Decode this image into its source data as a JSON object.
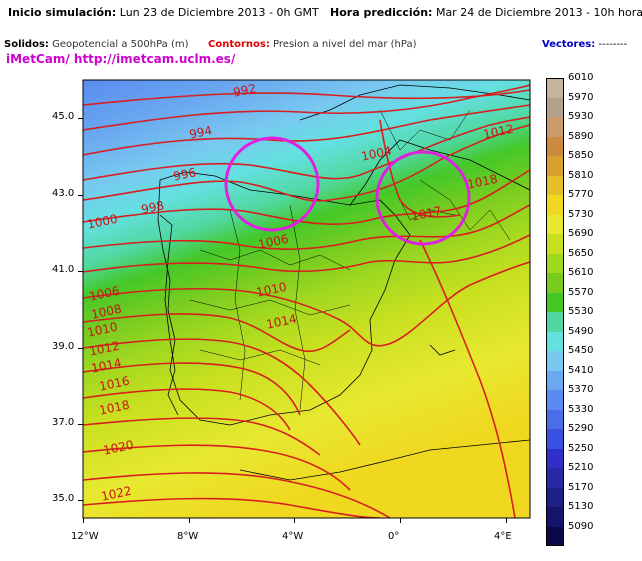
{
  "header": {
    "init_label": "Inicio simulación:",
    "init_value": "Lun 23 de Diciembre 2013 - 0h GMT",
    "pred_label": "Hora predicción:",
    "pred_value": "Mar 24 de Diciembre 2013 - 10h hora local",
    "solids_label": "Solidos:",
    "solids_value": "Geopotencial a 500hPa (m)",
    "contours_label": "Contornos:",
    "contours_value": "Presion a nivel del mar (hPa)",
    "vectors_label": "Vectores:",
    "vectors_value": "--------",
    "brand": "iMetCam/ http://imetcam.uclm.es/"
  },
  "axes": {
    "lat_ticks": [
      "45.0",
      "43.0",
      "41.0",
      "39.0",
      "37.0",
      "35.0"
    ],
    "lon_ticks": [
      "12°W",
      "8°W",
      "4°W",
      "0°",
      "4°E"
    ]
  },
  "legend": {
    "values": [
      "6010",
      "5970",
      "5930",
      "5890",
      "5850",
      "5810",
      "5770",
      "5730",
      "5690",
      "5650",
      "5610",
      "5570",
      "5530",
      "5490",
      "5450",
      "5410",
      "5370",
      "5330",
      "5290",
      "5250",
      "5210",
      "5170",
      "5130",
      "5090"
    ],
    "colors": [
      "#c8b49e",
      "#b4a08c",
      "#c89a6e",
      "#cc8a3e",
      "#d8a030",
      "#e6c028",
      "#f0d820",
      "#e8e830",
      "#c8e020",
      "#a0d820",
      "#78cc20",
      "#44c828",
      "#50d8a0",
      "#64e0e0",
      "#78c8f0",
      "#6aa8f0",
      "#5a8cf0",
      "#4a6ee8",
      "#3a50e0",
      "#3030c8",
      "#2828a8",
      "#1e1e88",
      "#141468",
      "#0a0a48"
    ]
  },
  "isobars": {
    "labels": [
      "992",
      "994",
      "996",
      "998",
      "1000",
      "1004",
      "1006",
      "1008",
      "1010",
      "1012",
      "1014",
      "1016",
      "1018",
      "1020",
      "1022",
      "1017",
      "1018",
      "1012",
      "1010",
      "1006",
      "1014"
    ]
  },
  "colors": {
    "contour": "#d81e1e",
    "highlight_circle": "#e020e0",
    "contours_label": "#e00000",
    "brand": "#d000d0",
    "vectors_label": "#0000c0"
  }
}
